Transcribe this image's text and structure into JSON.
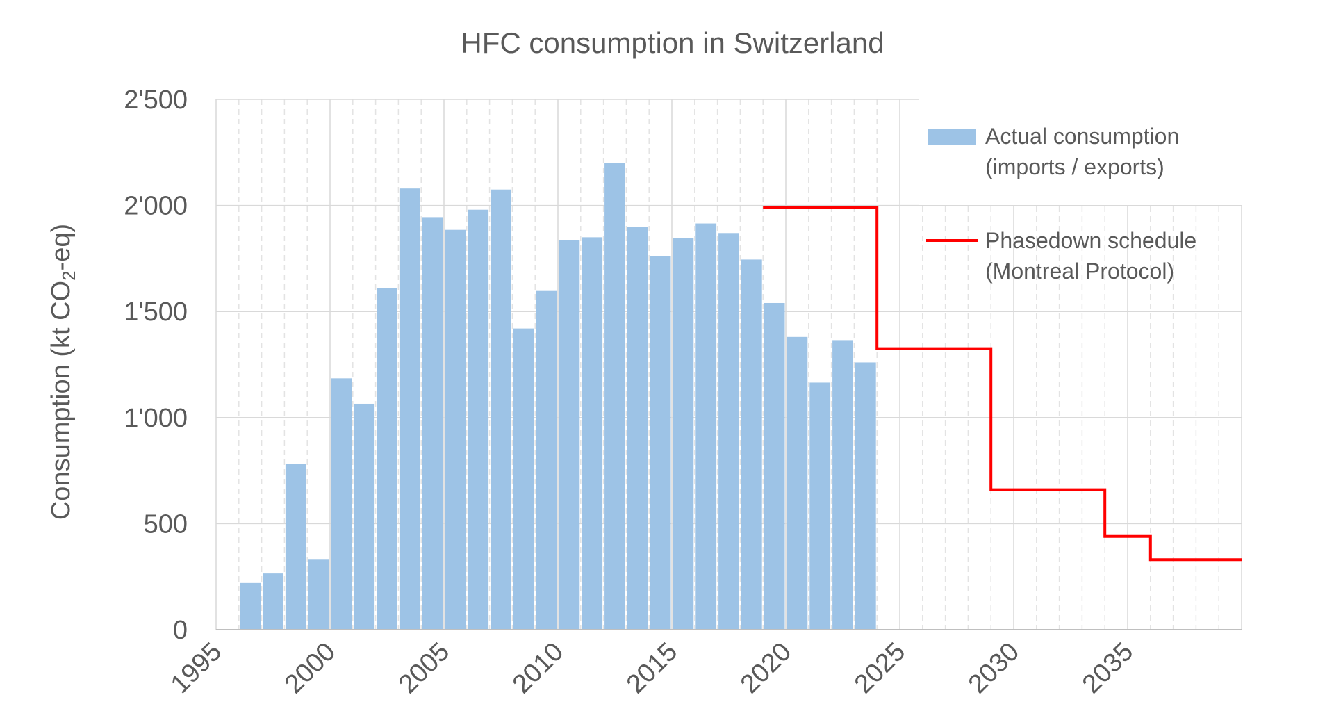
{
  "chart_data": {
    "type": "bar",
    "title": "HFC consumption in Switzerland",
    "ylabel": "Consumption (kt CO",
    "ylabel_subscript": "2",
    "ylabel_suffix": "-eq)",
    "xlabel": "",
    "xlim": [
      1995,
      2040
    ],
    "ylim": [
      0,
      2500
    ],
    "y_ticks": [
      {
        "value": 0,
        "label": "0"
      },
      {
        "value": 500,
        "label": "500"
      },
      {
        "value": 1000,
        "label": "1'000"
      },
      {
        "value": 1500,
        "label": "1'500"
      },
      {
        "value": 2000,
        "label": "2'000"
      },
      {
        "value": 2500,
        "label": "2'500"
      }
    ],
    "x_ticks": [
      {
        "value": 1995,
        "label": "1995"
      },
      {
        "value": 2000,
        "label": "2000"
      },
      {
        "value": 2005,
        "label": "2005"
      },
      {
        "value": 2010,
        "label": "2010"
      },
      {
        "value": 2015,
        "label": "2015"
      },
      {
        "value": 2020,
        "label": "2020"
      },
      {
        "value": 2025,
        "label": "2025"
      },
      {
        "value": 2030,
        "label": "2030"
      },
      {
        "value": 2035,
        "label": "2035"
      }
    ],
    "grid": {
      "horizontal": true,
      "vertical_major": true,
      "vertical_minor_dashed": true
    },
    "legend_position": "top-right",
    "series": [
      {
        "name": "Actual consumption (imports / exports)",
        "legend_lines": [
          "Actual consumption",
          "(imports / exports)"
        ],
        "kind": "bar",
        "color": "#9DC3E6",
        "x": [
          1996,
          1997,
          1998,
          1999,
          2000,
          2001,
          2002,
          2003,
          2004,
          2005,
          2006,
          2007,
          2008,
          2009,
          2010,
          2011,
          2012,
          2013,
          2014,
          2015,
          2016,
          2017,
          2018,
          2019,
          2020,
          2021,
          2022,
          2023
        ],
        "values": [
          220,
          265,
          780,
          330,
          1185,
          1065,
          1610,
          2080,
          1945,
          1885,
          1980,
          2075,
          1420,
          1600,
          1835,
          1850,
          2200,
          1900,
          1760,
          1845,
          1915,
          1870,
          1745,
          1540,
          1380,
          1165,
          1365,
          1260
        ]
      },
      {
        "name": "Phasedown schedule (Montreal Protocol)",
        "legend_lines": [
          "Phasedown schedule",
          "(Montreal Protocol)"
        ],
        "kind": "step-line",
        "color": "#FF0000",
        "steps": [
          {
            "from": 2019,
            "to": 2024,
            "value": 1990
          },
          {
            "from": 2024,
            "to": 2029,
            "value": 1325
          },
          {
            "from": 2029,
            "to": 2034,
            "value": 660
          },
          {
            "from": 2034,
            "to": 2036,
            "value": 440
          },
          {
            "from": 2036,
            "to": 2040,
            "value": 330
          }
        ]
      }
    ]
  }
}
